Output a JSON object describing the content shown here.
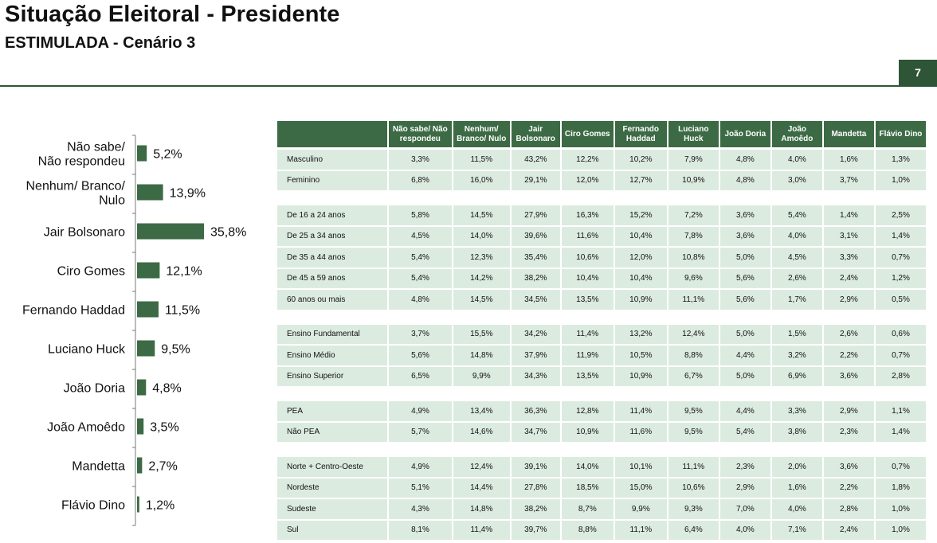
{
  "header": {
    "title": "Situação Eleitoral - Presidente",
    "subtitle": "ESTIMULADA - Cenário 3",
    "page_number": "7"
  },
  "colors": {
    "accent": "#2e5535",
    "bar": "#3c6a45",
    "cell": "#dcebe0"
  },
  "chart_data": {
    "type": "bar",
    "orientation": "horizontal",
    "categories": [
      "Não sabe/\nNão respondeu",
      "Nenhum/ Branco/\nNulo",
      "Jair Bolsonaro",
      "Ciro Gomes",
      "Fernando Haddad",
      "Luciano Huck",
      "João Doria",
      "João Amoêdo",
      "Mandetta",
      "Flávio Dino"
    ],
    "values": [
      5.2,
      13.9,
      35.8,
      12.1,
      11.5,
      9.5,
      4.8,
      3.5,
      2.7,
      1.2
    ],
    "labels": [
      "5,2%",
      "13,9%",
      "35,8%",
      "12,1%",
      "11,5%",
      "9,5%",
      "4,8%",
      "3,5%",
      "2,7%",
      "1,2%"
    ],
    "xlim": [
      0,
      35.8
    ]
  },
  "table": {
    "headers": [
      "",
      "Não sabe/ Não respondeu",
      "Nenhum/ Branco/ Nulo",
      "Jair Bolsonaro",
      "Ciro Gomes",
      "Fernando Haddad",
      "Luciano Huck",
      "João Doria",
      "João Amoêdo",
      "Mandetta",
      "Flávio Dino"
    ],
    "groups": [
      [
        [
          "Masculino",
          "3,3%",
          "11,5%",
          "43,2%",
          "12,2%",
          "10,2%",
          "7,9%",
          "4,8%",
          "4,0%",
          "1,6%",
          "1,3%"
        ],
        [
          "Feminino",
          "6,8%",
          "16,0%",
          "29,1%",
          "12,0%",
          "12,7%",
          "10,9%",
          "4,8%",
          "3,0%",
          "3,7%",
          "1,0%"
        ]
      ],
      [
        [
          "De 16 a 24 anos",
          "5,8%",
          "14,5%",
          "27,9%",
          "16,3%",
          "15,2%",
          "7,2%",
          "3,6%",
          "5,4%",
          "1,4%",
          "2,5%"
        ],
        [
          "De 25 a 34 anos",
          "4,5%",
          "14,0%",
          "39,6%",
          "11,6%",
          "10,4%",
          "7,8%",
          "3,6%",
          "4,0%",
          "3,1%",
          "1,4%"
        ],
        [
          "De 35 a 44 anos",
          "5,4%",
          "12,3%",
          "35,4%",
          "10,6%",
          "12,0%",
          "10,8%",
          "5,0%",
          "4,5%",
          "3,3%",
          "0,7%"
        ],
        [
          "De 45 a 59 anos",
          "5,4%",
          "14,2%",
          "38,2%",
          "10,4%",
          "10,4%",
          "9,6%",
          "5,6%",
          "2,6%",
          "2,4%",
          "1,2%"
        ],
        [
          "60 anos ou mais",
          "4,8%",
          "14,5%",
          "34,5%",
          "13,5%",
          "10,9%",
          "11,1%",
          "5,6%",
          "1,7%",
          "2,9%",
          "0,5%"
        ]
      ],
      [
        [
          "Ensino Fundamental",
          "3,7%",
          "15,5%",
          "34,2%",
          "11,4%",
          "13,2%",
          "12,4%",
          "5,0%",
          "1,5%",
          "2,6%",
          "0,6%"
        ],
        [
          "Ensino Médio",
          "5,6%",
          "14,8%",
          "37,9%",
          "11,9%",
          "10,5%",
          "8,8%",
          "4,4%",
          "3,2%",
          "2,2%",
          "0,7%"
        ],
        [
          "Ensino Superior",
          "6,5%",
          "9,9%",
          "34,3%",
          "13,5%",
          "10,9%",
          "6,7%",
          "5,0%",
          "6,9%",
          "3,6%",
          "2,8%"
        ]
      ],
      [
        [
          "PEA",
          "4,9%",
          "13,4%",
          "36,3%",
          "12,8%",
          "11,4%",
          "9,5%",
          "4,4%",
          "3,3%",
          "2,9%",
          "1,1%"
        ],
        [
          "Não PEA",
          "5,7%",
          "14,6%",
          "34,7%",
          "10,9%",
          "11,6%",
          "9,5%",
          "5,4%",
          "3,8%",
          "2,3%",
          "1,4%"
        ]
      ],
      [
        [
          "Norte + Centro-Oeste",
          "4,9%",
          "12,4%",
          "39,1%",
          "14,0%",
          "10,1%",
          "11,1%",
          "2,3%",
          "2,0%",
          "3,6%",
          "0,7%"
        ],
        [
          "Nordeste",
          "5,1%",
          "14,4%",
          "27,8%",
          "18,5%",
          "15,0%",
          "10,6%",
          "2,9%",
          "1,6%",
          "2,2%",
          "1,8%"
        ],
        [
          "Sudeste",
          "4,3%",
          "14,8%",
          "38,2%",
          "8,7%",
          "9,9%",
          "9,3%",
          "7,0%",
          "4,0%",
          "2,8%",
          "1,0%"
        ],
        [
          "Sul",
          "8,1%",
          "11,4%",
          "39,7%",
          "8,8%",
          "11,1%",
          "6,4%",
          "4,0%",
          "7,1%",
          "2,4%",
          "1,0%"
        ]
      ]
    ]
  }
}
